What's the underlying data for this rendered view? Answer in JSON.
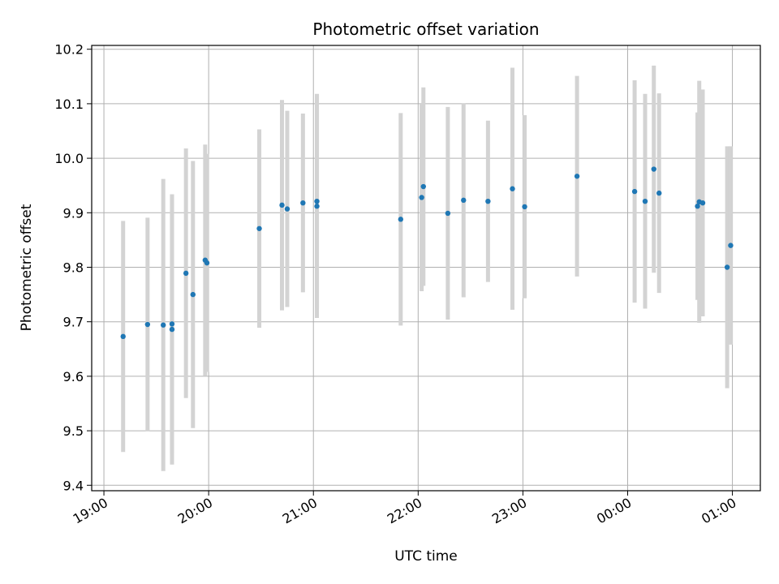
{
  "chart_data": {
    "type": "scatter",
    "title": "Photometric offset variation",
    "xlabel": "UTC time",
    "ylabel": "Photometric offset",
    "x_ticks": [
      "19:00",
      "20:00",
      "21:00",
      "22:00",
      "23:00",
      "00:00",
      "01:00"
    ],
    "x_tick_values": [
      "2023-01-01T19:00",
      "2023-01-01T20:00",
      "2023-01-01T21:00",
      "2023-01-01T22:00",
      "2023-01-01T23:00",
      "2023-01-02T00:00",
      "2023-01-02T01:00"
    ],
    "xlim": [
      "2023-01-01T18:53",
      "2023-01-02T01:16"
    ],
    "y_ticks": [
      "9.4",
      "9.5",
      "9.6",
      "9.7",
      "9.8",
      "9.9",
      "10.0",
      "10.1",
      "10.2"
    ],
    "ylim": [
      9.39,
      10.207
    ],
    "grid": true,
    "colors": {
      "point": "#1f77b4",
      "error_bar": "#d3d3d3",
      "grid": "#b0b0b0"
    },
    "points": [
      {
        "x": "2023-01-01T19:11",
        "y": 9.673,
        "err": 0.212
      },
      {
        "x": "2023-01-01T19:25",
        "y": 9.695,
        "err": 0.196
      },
      {
        "x": "2023-01-01T19:34",
        "y": 9.694,
        "err": 0.268
      },
      {
        "x": "2023-01-01T19:39",
        "y": 9.686,
        "err": 0.248
      },
      {
        "x": "2023-01-01T19:39",
        "y": 9.696,
        "err": 0.238
      },
      {
        "x": "2023-01-01T19:47",
        "y": 9.789,
        "err": 0.229
      },
      {
        "x": "2023-01-01T19:51",
        "y": 9.75,
        "err": 0.245
      },
      {
        "x": "2023-01-01T19:58",
        "y": 9.813,
        "err": 0.212
      },
      {
        "x": "2023-01-01T19:59",
        "y": 9.808,
        "err": 0.2
      },
      {
        "x": "2023-01-01T20:29",
        "y": 9.871,
        "err": 0.182
      },
      {
        "x": "2023-01-01T20:42",
        "y": 9.914,
        "err": 0.193
      },
      {
        "x": "2023-01-01T20:45",
        "y": 9.907,
        "err": 0.18
      },
      {
        "x": "2023-01-01T20:54",
        "y": 9.918,
        "err": 0.164
      },
      {
        "x": "2023-01-01T21:02",
        "y": 9.921,
        "err": 0.197
      },
      {
        "x": "2023-01-01T21:02",
        "y": 9.912,
        "err": 0.205
      },
      {
        "x": "2023-01-01T21:50",
        "y": 9.888,
        "err": 0.195
      },
      {
        "x": "2023-01-01T22:02",
        "y": 9.928,
        "err": 0.172
      },
      {
        "x": "2023-01-01T22:03",
        "y": 9.948,
        "err": 0.182
      },
      {
        "x": "2023-01-01T22:17",
        "y": 9.899,
        "err": 0.195
      },
      {
        "x": "2023-01-01T22:26",
        "y": 9.923,
        "err": 0.178
      },
      {
        "x": "2023-01-01T22:40",
        "y": 9.921,
        "err": 0.148
      },
      {
        "x": "2023-01-01T22:54",
        "y": 9.944,
        "err": 0.222
      },
      {
        "x": "2023-01-01T23:01",
        "y": 9.911,
        "err": 0.168
      },
      {
        "x": "2023-01-01T23:31",
        "y": 9.967,
        "err": 0.184
      },
      {
        "x": "2023-01-02T00:04",
        "y": 9.939,
        "err": 0.204
      },
      {
        "x": "2023-01-02T00:10",
        "y": 9.921,
        "err": 0.197
      },
      {
        "x": "2023-01-02T00:15",
        "y": 9.98,
        "err": 0.19
      },
      {
        "x": "2023-01-02T00:18",
        "y": 9.936,
        "err": 0.183
      },
      {
        "x": "2023-01-02T00:40",
        "y": 9.912,
        "err": 0.172
      },
      {
        "x": "2023-01-02T00:41",
        "y": 9.92,
        "err": 0.222
      },
      {
        "x": "2023-01-02T00:43",
        "y": 9.918,
        "err": 0.208
      },
      {
        "x": "2023-01-02T00:57",
        "y": 9.8,
        "err": 0.222
      },
      {
        "x": "2023-01-02T00:59",
        "y": 9.84,
        "err": 0.182
      }
    ]
  }
}
